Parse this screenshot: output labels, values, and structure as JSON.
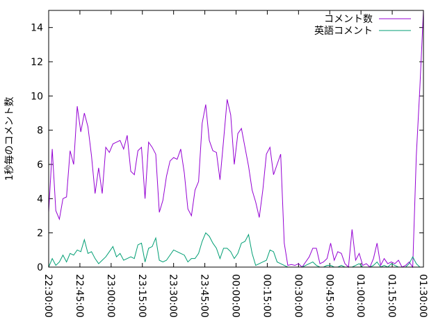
{
  "chart_data": {
    "type": "line",
    "ylabel": "1秒毎のコメント数",
    "xlabel": "",
    "ylim": [
      0,
      15
    ],
    "y_ticks": [
      0,
      2,
      4,
      6,
      8,
      10,
      12,
      14
    ],
    "x_ticks": [
      "22:30:00",
      "22:45:00",
      "23:00:00",
      "23:15:00",
      "23:30:00",
      "23:45:00",
      "00:00:00",
      "00:15:00",
      "00:30:00",
      "00:45:00",
      "01:00:00",
      "01:15:00",
      "01:30:00"
    ],
    "x_unit_minutes_per_tick": 15,
    "legend_position": "top-right",
    "series": [
      {
        "name": "コメント数",
        "color": "#9400d3",
        "points": [
          [
            0,
            3.2
          ],
          [
            1,
            6.9
          ],
          [
            2,
            3.3
          ],
          [
            3,
            2.8
          ],
          [
            4,
            4.0
          ],
          [
            5,
            4.1
          ],
          [
            6,
            6.8
          ],
          [
            7,
            6.0
          ],
          [
            8,
            9.4
          ],
          [
            9,
            7.9
          ],
          [
            10,
            9.0
          ],
          [
            11,
            8.2
          ],
          [
            12,
            6.5
          ],
          [
            13,
            4.3
          ],
          [
            14,
            5.8
          ],
          [
            15,
            4.3
          ],
          [
            16,
            7.0
          ],
          [
            17,
            6.7
          ],
          [
            18,
            7.2
          ],
          [
            19,
            7.3
          ],
          [
            20,
            7.4
          ],
          [
            21,
            6.9
          ],
          [
            22,
            7.7
          ],
          [
            23,
            5.6
          ],
          [
            24,
            5.4
          ],
          [
            25,
            6.8
          ],
          [
            26,
            7.0
          ],
          [
            27,
            4.0
          ],
          [
            28,
            7.3
          ],
          [
            29,
            7.0
          ],
          [
            30,
            6.6
          ],
          [
            31,
            3.2
          ],
          [
            32,
            3.9
          ],
          [
            33,
            5.3
          ],
          [
            34,
            6.2
          ],
          [
            35,
            6.4
          ],
          [
            36,
            6.3
          ],
          [
            37,
            6.9
          ],
          [
            38,
            5.5
          ],
          [
            39,
            3.4
          ],
          [
            40,
            3.0
          ],
          [
            41,
            4.5
          ],
          [
            42,
            5.0
          ],
          [
            43,
            8.4
          ],
          [
            44,
            9.5
          ],
          [
            45,
            7.4
          ],
          [
            46,
            6.8
          ],
          [
            47,
            6.7
          ],
          [
            48,
            5.1
          ],
          [
            49,
            7.4
          ],
          [
            50,
            9.8
          ],
          [
            51,
            8.9
          ],
          [
            52,
            6.0
          ],
          [
            53,
            7.8
          ],
          [
            54,
            8.1
          ],
          [
            55,
            7.0
          ],
          [
            56,
            5.9
          ],
          [
            57,
            4.5
          ],
          [
            58,
            3.8
          ],
          [
            59,
            2.9
          ],
          [
            60,
            4.5
          ],
          [
            61,
            6.6
          ],
          [
            62,
            7.0
          ],
          [
            63,
            5.4
          ],
          [
            64,
            6.0
          ],
          [
            65,
            6.6
          ],
          [
            66,
            1.4
          ],
          [
            67,
            0.1
          ],
          [
            68,
            0.15
          ],
          [
            69,
            0.1
          ],
          [
            70,
            0.2
          ],
          [
            71,
            0.0
          ],
          [
            72,
            0.3
          ],
          [
            73,
            0.6
          ],
          [
            74,
            1.1
          ],
          [
            75,
            1.1
          ],
          [
            76,
            0.2
          ],
          [
            77,
            0.3
          ],
          [
            78,
            0.5
          ],
          [
            79,
            1.4
          ],
          [
            80,
            0.4
          ],
          [
            81,
            0.9
          ],
          [
            82,
            0.8
          ],
          [
            83,
            0.2
          ],
          [
            84,
            0.0
          ],
          [
            85,
            2.2
          ],
          [
            86,
            0.4
          ],
          [
            87,
            0.8
          ],
          [
            88,
            0.1
          ],
          [
            89,
            0.2
          ],
          [
            90,
            0.0
          ],
          [
            91,
            0.5
          ],
          [
            92,
            1.4
          ],
          [
            93,
            0.1
          ],
          [
            94,
            0.5
          ],
          [
            95,
            0.2
          ],
          [
            96,
            0.3
          ],
          [
            97,
            0.2
          ],
          [
            98,
            0.4
          ],
          [
            99,
            0.0
          ],
          [
            100,
            0.1
          ],
          [
            101,
            0.3
          ],
          [
            102,
            0.0
          ],
          [
            103,
            6.5
          ],
          [
            104,
            10.5
          ],
          [
            105,
            15.0
          ]
        ]
      },
      {
        "name": "英語コメント",
        "color": "#009e73",
        "points": [
          [
            0,
            0.0
          ],
          [
            1,
            0.5
          ],
          [
            2,
            0.1
          ],
          [
            3,
            0.3
          ],
          [
            4,
            0.7
          ],
          [
            5,
            0.3
          ],
          [
            6,
            0.8
          ],
          [
            7,
            0.7
          ],
          [
            8,
            1.0
          ],
          [
            9,
            0.9
          ],
          [
            10,
            1.6
          ],
          [
            11,
            0.8
          ],
          [
            12,
            0.9
          ],
          [
            13,
            0.5
          ],
          [
            14,
            0.2
          ],
          [
            15,
            0.4
          ],
          [
            16,
            0.6
          ],
          [
            17,
            0.9
          ],
          [
            18,
            1.2
          ],
          [
            19,
            0.6
          ],
          [
            20,
            0.8
          ],
          [
            21,
            0.4
          ],
          [
            22,
            0.5
          ],
          [
            23,
            0.6
          ],
          [
            24,
            0.5
          ],
          [
            25,
            1.3
          ],
          [
            26,
            1.4
          ],
          [
            27,
            0.3
          ],
          [
            28,
            1.1
          ],
          [
            29,
            1.2
          ],
          [
            30,
            1.7
          ],
          [
            31,
            0.4
          ],
          [
            32,
            0.3
          ],
          [
            33,
            0.4
          ],
          [
            34,
            0.7
          ],
          [
            35,
            1.0
          ],
          [
            36,
            0.9
          ],
          [
            37,
            0.8
          ],
          [
            38,
            0.7
          ],
          [
            39,
            0.3
          ],
          [
            40,
            0.5
          ],
          [
            41,
            0.5
          ],
          [
            42,
            0.8
          ],
          [
            43,
            1.5
          ],
          [
            44,
            2.0
          ],
          [
            45,
            1.8
          ],
          [
            46,
            1.4
          ],
          [
            47,
            1.1
          ],
          [
            48,
            0.5
          ],
          [
            49,
            1.1
          ],
          [
            50,
            1.1
          ],
          [
            51,
            0.9
          ],
          [
            52,
            0.5
          ],
          [
            53,
            0.8
          ],
          [
            54,
            1.4
          ],
          [
            55,
            1.5
          ],
          [
            56,
            1.9
          ],
          [
            57,
            0.8
          ],
          [
            58,
            0.1
          ],
          [
            59,
            0.2
          ],
          [
            60,
            0.3
          ],
          [
            61,
            0.4
          ],
          [
            62,
            1.0
          ],
          [
            63,
            0.9
          ],
          [
            64,
            0.3
          ],
          [
            65,
            0.2
          ],
          [
            66,
            0.1
          ],
          [
            67,
            0.0
          ],
          [
            68,
            0.0
          ],
          [
            69,
            0.0
          ],
          [
            70,
            0.0
          ],
          [
            71,
            0.0
          ],
          [
            72,
            0.1
          ],
          [
            73,
            0.2
          ],
          [
            74,
            0.3
          ],
          [
            75,
            0.1
          ],
          [
            76,
            0.0
          ],
          [
            77,
            0.0
          ],
          [
            78,
            0.1
          ],
          [
            79,
            0.1
          ],
          [
            80,
            0.0
          ],
          [
            81,
            0.0
          ],
          [
            82,
            0.1
          ],
          [
            83,
            0.0
          ],
          [
            84,
            0.0
          ],
          [
            85,
            0.0
          ],
          [
            86,
            0.1
          ],
          [
            87,
            0.2
          ],
          [
            88,
            0.0
          ],
          [
            89,
            0.0
          ],
          [
            90,
            0.0
          ],
          [
            91,
            0.1
          ],
          [
            92,
            0.3
          ],
          [
            93,
            0.0
          ],
          [
            94,
            0.1
          ],
          [
            95,
            0.0
          ],
          [
            96,
            0.2
          ],
          [
            97,
            0.1
          ],
          [
            98,
            0.0
          ],
          [
            99,
            0.0
          ],
          [
            100,
            0.0
          ],
          [
            101,
            0.2
          ],
          [
            102,
            0.6
          ],
          [
            103,
            0.2
          ],
          [
            104,
            0.0
          ],
          [
            105,
            0.0
          ]
        ]
      }
    ]
  }
}
